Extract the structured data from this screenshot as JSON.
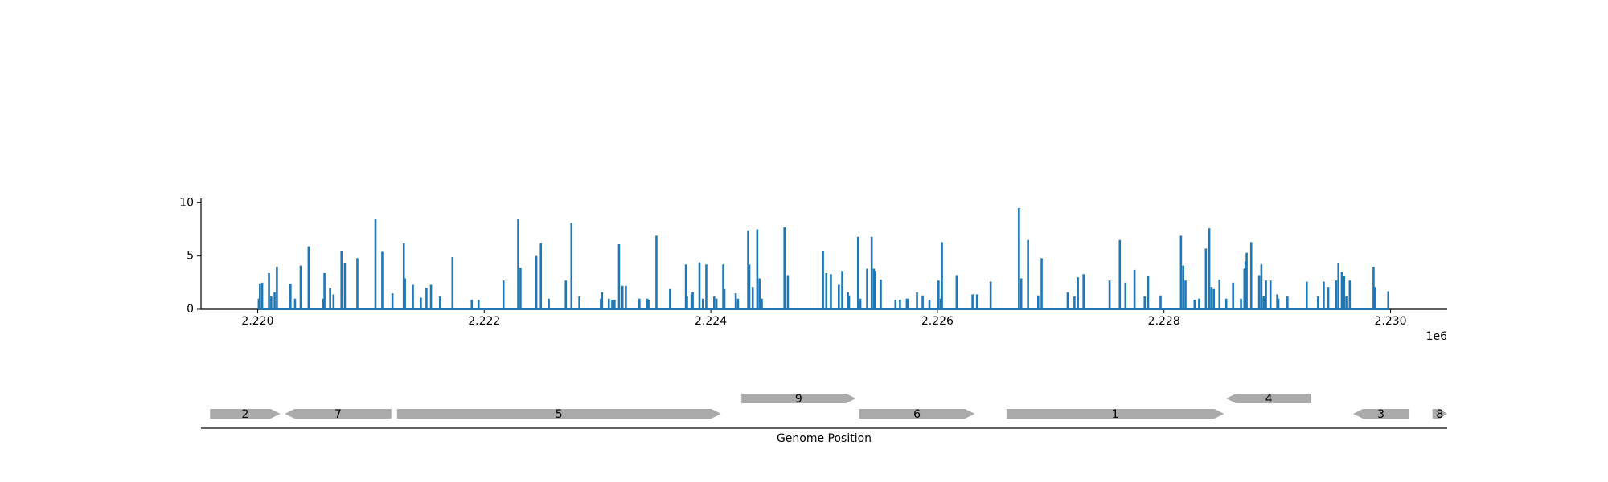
{
  "chart_data": {
    "type": "bar",
    "color": "#1f77b4",
    "x": [
      2220010,
      2220020,
      2220040,
      2220100,
      2220120,
      2220150,
      2220170,
      2220290,
      2220330,
      2220380,
      2220450,
      2220580,
      2220590,
      2220640,
      2220670,
      2220740,
      2220770,
      2220880,
      2221040,
      2221100,
      2221190,
      2221290,
      2221300,
      2221370,
      2221440,
      2221490,
      2221530,
      2221610,
      2221720,
      2221890,
      2221950,
      2222170,
      2222300,
      2222320,
      2222460,
      2222500,
      2222570,
      2222720,
      2222770,
      2222840,
      2223030,
      2223040,
      2223100,
      2223130,
      2223150,
      2223190,
      2223220,
      2223250,
      2223370,
      2223440,
      2223450,
      2223520,
      2223640,
      2223780,
      2223790,
      2223830,
      2223840,
      2223900,
      2223930,
      2223960,
      2224030,
      2224050,
      2224110,
      2224120,
      2224220,
      2224240,
      2224330,
      2224340,
      2224370,
      2224410,
      2224430,
      2224450,
      2224650,
      2224680,
      2224990,
      2225020,
      2225060,
      2225130,
      2225160,
      2225210,
      2225220,
      2225300,
      2225320,
      2225380,
      2225420,
      2225440,
      2225450,
      2225500,
      2225630,
      2225670,
      2225730,
      2225740,
      2225820,
      2225870,
      2225930,
      2226010,
      2226030,
      2226040,
      2226170,
      2226310,
      2226350,
      2226470,
      2226720,
      2226740,
      2226800,
      2226890,
      2226920,
      2227150,
      2227210,
      2227240,
      2227290,
      2227520,
      2227610,
      2227660,
      2227740,
      2227830,
      2227860,
      2227970,
      2228150,
      2228170,
      2228190,
      2228270,
      2228310,
      2228370,
      2228400,
      2228420,
      2228440,
      2228490,
      2228550,
      2228610,
      2228680,
      2228710,
      2228720,
      2228730,
      2228770,
      2228840,
      2228860,
      2228880,
      2228900,
      2228940,
      2229000,
      2229010,
      2229090,
      2229260,
      2229360,
      2229410,
      2229450,
      2229520,
      2229540,
      2229570,
      2229590,
      2229610,
      2229640,
      2229850,
      2229860,
      2229980
    ],
    "values": [
      1,
      2.4,
      2.5,
      3.4,
      1.2,
      1.6,
      4,
      2.4,
      1,
      4.1,
      5.9,
      1,
      3.4,
      2,
      1.4,
      5.5,
      4.3,
      4.8,
      8.5,
      5.4,
      1.5,
      6.2,
      2.9,
      2.3,
      1.1,
      2,
      2.3,
      1.2,
      4.9,
      0.9,
      0.9,
      2.7,
      8.5,
      3.9,
      5,
      6.2,
      1,
      2.7,
      8.1,
      1.2,
      1,
      1.6,
      1,
      0.9,
      0.9,
      6.1,
      2.2,
      2.2,
      1,
      1,
      0.9,
      6.9,
      1.9,
      4.2,
      1.2,
      1.4,
      1.6,
      4.4,
      1,
      4.2,
      1.2,
      1,
      4.2,
      1.9,
      1.5,
      1,
      7.4,
      4.2,
      2.1,
      7.5,
      2.9,
      1,
      7.7,
      3.2,
      5.5,
      3.4,
      3.3,
      2.3,
      3.6,
      1.6,
      1.3,
      6.8,
      1,
      3.8,
      6.8,
      3.8,
      3.6,
      2.8,
      0.9,
      0.9,
      1,
      1,
      1.6,
      1.3,
      0.9,
      2.7,
      1,
      6.3,
      3.2,
      1.4,
      1.4,
      2.6,
      9.5,
      2.9,
      6.5,
      1.3,
      4.8,
      1.6,
      1.2,
      3,
      3.3,
      2.7,
      6.5,
      2.5,
      3.7,
      1.2,
      3.1,
      1.3,
      6.9,
      4.1,
      2.7,
      0.9,
      1,
      5.7,
      7.6,
      2.1,
      1.9,
      2.8,
      1,
      2.5,
      1,
      3.8,
      4.5,
      5.3,
      6.3,
      3.2,
      4.2,
      1.2,
      2.7,
      2.7,
      1.4,
      1,
      1.2,
      2.6,
      1.2,
      2.6,
      2.1,
      2.7,
      4.3,
      3.5,
      3.1,
      1.2,
      2.7,
      4,
      2.1,
      1.7
    ],
    "xlim": [
      2219500,
      2230500
    ],
    "xticks": [
      {
        "value": 2220000,
        "label": "2.220"
      },
      {
        "value": 2222000,
        "label": "2.222"
      },
      {
        "value": 2224000,
        "label": "2.224"
      },
      {
        "value": 2226000,
        "label": "2.226"
      },
      {
        "value": 2228000,
        "label": "2.228"
      },
      {
        "value": 2230000,
        "label": "2.230"
      }
    ],
    "x_offset_label": "1e6",
    "ylim": [
      0,
      10.4
    ],
    "yticks": [
      0,
      5,
      10
    ],
    "xlabel": "Genome Position",
    "gene_color": "#aaaaaa",
    "genes": [
      {
        "label": "2",
        "start": 2219580,
        "end": 2220200,
        "strand": 1,
        "row": 0
      },
      {
        "label": "7",
        "start": 2220240,
        "end": 2221180,
        "strand": -1,
        "row": 0
      },
      {
        "label": "5",
        "start": 2221230,
        "end": 2224090,
        "strand": 1,
        "row": 0
      },
      {
        "label": "9",
        "start": 2224270,
        "end": 2225280,
        "strand": 1,
        "row": 1
      },
      {
        "label": "6",
        "start": 2225310,
        "end": 2226330,
        "strand": 1,
        "row": 0
      },
      {
        "label": "1",
        "start": 2226610,
        "end": 2228530,
        "strand": 1,
        "row": 0
      },
      {
        "label": "4",
        "start": 2228550,
        "end": 2229300,
        "strand": -1,
        "row": 1
      },
      {
        "label": "3",
        "start": 2229670,
        "end": 2230160,
        "strand": -1,
        "row": 0
      },
      {
        "label": "8",
        "start": 2230370,
        "end": 2230500,
        "strand": 1,
        "row": 0
      }
    ]
  }
}
